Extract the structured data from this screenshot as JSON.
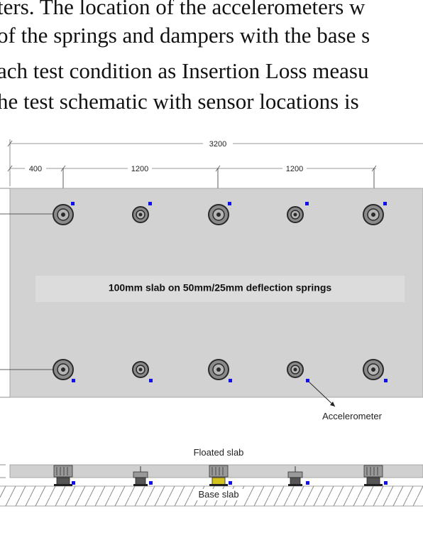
{
  "paragraph": {
    "line1": "ters. The location of the accelerometers w",
    "line2": "of the springs and dampers with the base s",
    "line3": "ach test condition as Insertion Loss measu",
    "line4": "he test schematic with sensor locations is"
  },
  "plan_view": {
    "dimension_total": "3200",
    "dimension_edge": "400",
    "dimension_spacing_1": "1200",
    "dimension_spacing_2": "1200",
    "slab_caption": "100mm slab on 50mm/25mm deflection springs",
    "accelerometer_label": "Accelerometer",
    "colors": {
      "slab": "#d2d2d2",
      "sensor": "#1010ee"
    }
  },
  "section_view": {
    "floated_slab_label": "Floated slab",
    "base_slab_label": "Base slab"
  }
}
